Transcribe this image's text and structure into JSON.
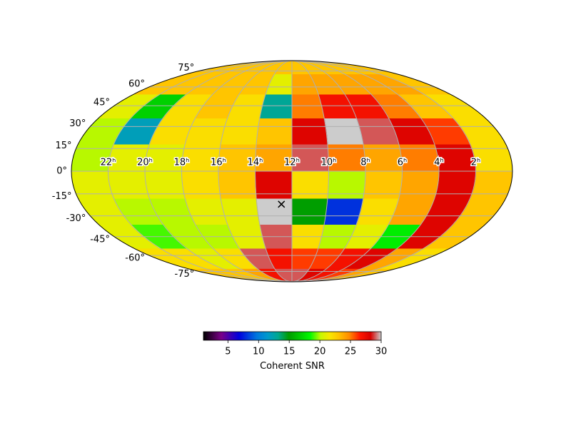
{
  "chart_data": {
    "type": "heatmap",
    "projection": "mollweide",
    "grid": true,
    "colormap": "nipy_spectral",
    "x": [
      0,
      2,
      4,
      6,
      8,
      10,
      12,
      14,
      16,
      18,
      20,
      22,
      24
    ],
    "y": [
      -90,
      -72,
      -54,
      -36,
      -18,
      0,
      18,
      36,
      54,
      72,
      90
    ],
    "values": [
      [
        23,
        24,
        26,
        27,
        28,
        29,
        29,
        27,
        24,
        23,
        23,
        23
      ],
      [
        22,
        24,
        28,
        27,
        26,
        26,
        27,
        29,
        22,
        21,
        22,
        22
      ],
      [
        23,
        28,
        18,
        21,
        20,
        22,
        29,
        21,
        20,
        20,
        19,
        21
      ],
      [
        23,
        28,
        24,
        22,
        8,
        15,
        30,
        21,
        21,
        20,
        20,
        21
      ],
      [
        23,
        28,
        24,
        23,
        20,
        22,
        28,
        23,
        22,
        21,
        21,
        21
      ],
      [
        22,
        28,
        25,
        24,
        25,
        29,
        24,
        23,
        22,
        21,
        21,
        20
      ],
      [
        22,
        26,
        28,
        29,
        30,
        28,
        23,
        22,
        22,
        22,
        12,
        20
      ],
      [
        22,
        23,
        25,
        27,
        27,
        25,
        13,
        22,
        23,
        22,
        17,
        21
      ],
      [
        23,
        24,
        24,
        24,
        24,
        24,
        21,
        23,
        23,
        23,
        23,
        23
      ],
      [
        23,
        23,
        23,
        23,
        23,
        23,
        23,
        23,
        23,
        23,
        23,
        23
      ]
    ],
    "xticks": [
      {
        "value": 2,
        "label": "2ʰ"
      },
      {
        "value": 4,
        "label": "4ʰ"
      },
      {
        "value": 6,
        "label": "6ʰ"
      },
      {
        "value": 8,
        "label": "8ʰ"
      },
      {
        "value": 10,
        "label": "10ʰ"
      },
      {
        "value": 12,
        "label": "12ʰ"
      },
      {
        "value": 14,
        "label": "14ʰ"
      },
      {
        "value": 16,
        "label": "16ʰ"
      },
      {
        "value": 18,
        "label": "18ʰ"
      },
      {
        "value": 20,
        "label": "20ʰ"
      },
      {
        "value": 22,
        "label": "22ʰ"
      }
    ],
    "yticks": [
      {
        "value": -75,
        "label": "-75°"
      },
      {
        "value": -60,
        "label": "-60°"
      },
      {
        "value": -45,
        "label": "-45°"
      },
      {
        "value": -30,
        "label": "-30°"
      },
      {
        "value": -15,
        "label": "-15°"
      },
      {
        "value": 0,
        "label": "0°"
      },
      {
        "value": 15,
        "label": "15°"
      },
      {
        "value": 30,
        "label": "30°"
      },
      {
        "value": 45,
        "label": "45°"
      },
      {
        "value": 60,
        "label": "60°"
      },
      {
        "value": 75,
        "label": "75°"
      }
    ],
    "points": {
      "x": [
        12.6
      ],
      "y": [
        -22
      ]
    },
    "colorbar": {
      "label": "Coherent SNR",
      "lim": [
        1,
        30
      ],
      "ticks": [
        5,
        10,
        15,
        20,
        25,
        30
      ]
    }
  }
}
